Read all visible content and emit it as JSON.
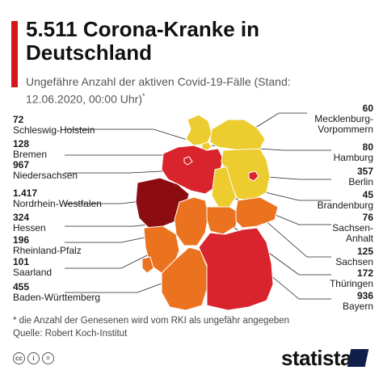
{
  "title": "5.511 Corona-Kranke in Deutschland",
  "subtitle": "Ungefähre Anzahl der aktiven Covid-19-Fälle (Stand: 12.06.2020, 00:00 Uhr)",
  "subtitle_mark": "*",
  "colors": {
    "accent": "#d7161c",
    "level_1": "#eccc2e",
    "level_2": "#eb7320",
    "level_3": "#d9242d",
    "level_4": "#8b0d11"
  },
  "chart_data": {
    "type": "choropleth-map",
    "states": [
      {
        "name": "Schleswig-Holstein",
        "value": 72
      },
      {
        "name": "Bremen",
        "value": 128
      },
      {
        "name": "Niedersachsen",
        "value": 967
      },
      {
        "name": "Nordrhein-Westfalen",
        "value": 1417
      },
      {
        "name": "Hessen",
        "value": 324
      },
      {
        "name": "Rheinland-Pfalz",
        "value": 196
      },
      {
        "name": "Saarland",
        "value": 101
      },
      {
        "name": "Baden-Württemberg",
        "value": 455
      },
      {
        "name": "Mecklenburg-Vorpommern",
        "value": 60
      },
      {
        "name": "Hamburg",
        "value": 80
      },
      {
        "name": "Berlin",
        "value": 357
      },
      {
        "name": "Brandenburg",
        "value": 45
      },
      {
        "name": "Sachsen-Anhalt",
        "value": 76
      },
      {
        "name": "Sachsen",
        "value": 125
      },
      {
        "name": "Thüringen",
        "value": 172
      },
      {
        "name": "Bayern",
        "value": 936
      }
    ]
  },
  "labels": {
    "sh": {
      "value": "72",
      "name": "Schleswig-Holstein"
    },
    "hb": {
      "value": "128",
      "name": "Bremen"
    },
    "ni": {
      "value": "967",
      "name": "Niedersachsen"
    },
    "nw": {
      "value": "1.417",
      "name": "Nordrhein-Westfalen"
    },
    "he": {
      "value": "324",
      "name": "Hessen"
    },
    "rp": {
      "value": "196",
      "name": "Rheinland-Pfalz"
    },
    "sl": {
      "value": "101",
      "name": "Saarland"
    },
    "bw": {
      "value": "455",
      "name": "Baden-Württemberg"
    },
    "mv": {
      "value": "60",
      "name": "Mecklenburg-Vorpommern",
      "name_line1": "Mecklenburg-",
      "name_line2": "Vorpommern"
    },
    "hh": {
      "value": "80",
      "name": "Hamburg"
    },
    "be": {
      "value": "357",
      "name": "Berlin"
    },
    "bb": {
      "value": "45",
      "name": "Brandenburg"
    },
    "st": {
      "value": "76",
      "name": "Sachsen-Anhalt",
      "name_line1": "Sachsen-",
      "name_line2": "Anhalt"
    },
    "sn": {
      "value": "125",
      "name": "Sachsen"
    },
    "th": {
      "value": "172",
      "name": "Thüringen"
    },
    "by": {
      "value": "936",
      "name": "Bayern"
    }
  },
  "footnote": "* die Anzahl der Genesenen wird vom RKI als ungefähr angegeben",
  "source": "Quelle: Robert Koch-Institut",
  "license_icons": [
    "cc-icon",
    "person-icon",
    "equals-icon"
  ],
  "brand": "statista"
}
